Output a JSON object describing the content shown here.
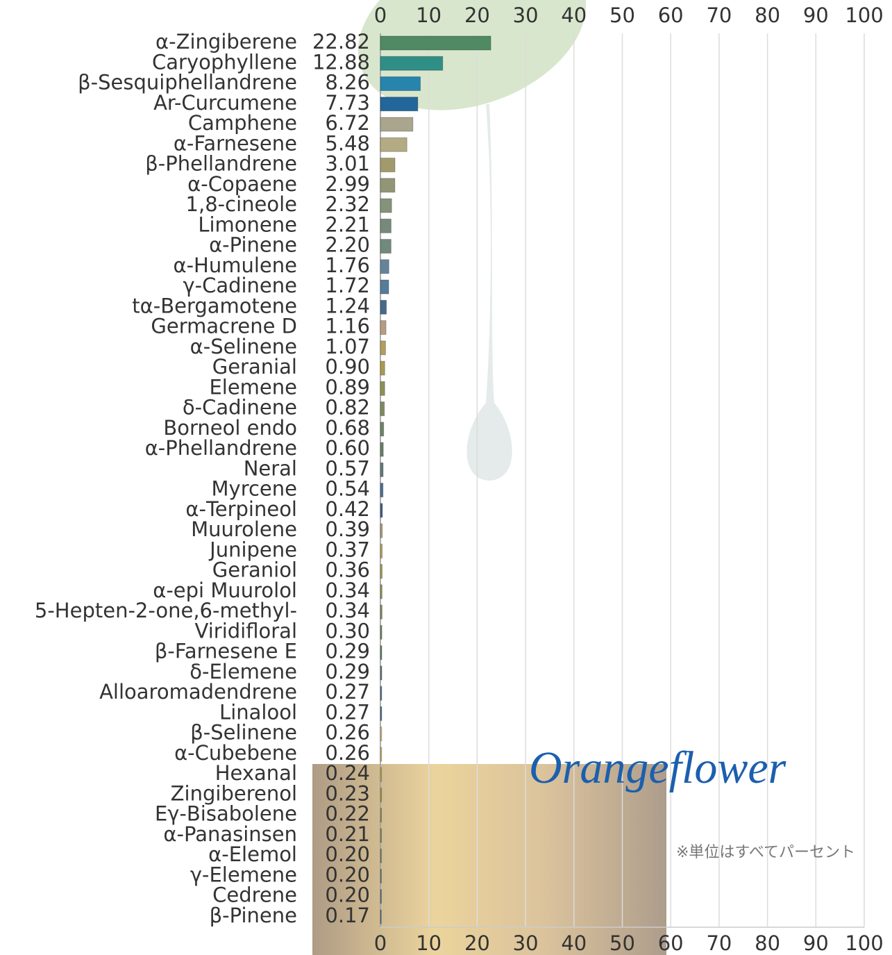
{
  "chart_data": {
    "type": "hbar",
    "categories": [
      "α-Zingiberene",
      "Caryophyllene",
      "β-Sesquiphellandrene",
      "Ar-Curcumene",
      "Camphene",
      "α-Farnesene",
      "β-Phellandrene",
      "α-Copaene",
      "1,8-cineole",
      "Limonene",
      "α-Pinene",
      "α-Humulene",
      "γ-Cadinene",
      "tα-Bergamotene",
      "Germacrene D",
      "α-Selinene",
      "Geranial",
      "Elemene",
      "δ-Cadinene",
      "Borneol endo",
      "α-Phellandrene",
      "Neral",
      "Myrcene",
      "α-Terpineol",
      "Muurolene",
      "Junipene",
      "Geraniol",
      "α-epi Muurolol",
      "5-Hepten-2-one,6-methyl-",
      "Viridifloral",
      "β-Farnesene E",
      "δ-Elemene",
      "Alloaromadendrene",
      "Linalool",
      "β-Selinene",
      "α-Cubebene",
      "Hexanal",
      "Zingiberenol",
      "Eγ-Bisabolene",
      "α-Panasinsen",
      "α-Elemol",
      "γ-Elemene",
      "Cedrene",
      "β-Pinene"
    ],
    "values": [
      22.82,
      12.88,
      8.26,
      7.73,
      6.72,
      5.48,
      3.01,
      2.99,
      2.32,
      2.21,
      2.2,
      1.76,
      1.72,
      1.24,
      1.16,
      1.07,
      0.9,
      0.89,
      0.82,
      0.68,
      0.6,
      0.57,
      0.54,
      0.42,
      0.39,
      0.37,
      0.36,
      0.34,
      0.34,
      0.3,
      0.29,
      0.29,
      0.27,
      0.27,
      0.26,
      0.26,
      0.24,
      0.23,
      0.22,
      0.21,
      0.2,
      0.2,
      0.2,
      0.17
    ],
    "value_labels": [
      "22.82",
      "12.88",
      "8.26",
      "7.73",
      "6.72",
      "5.48",
      "3.01",
      "2.99",
      "2.32",
      "2.21",
      "2.20",
      "1.76",
      "1.72",
      "1.24",
      "1.16",
      "1.07",
      "0.90",
      "0.89",
      "0.82",
      "0.68",
      "0.60",
      "0.57",
      "0.54",
      "0.42",
      "0.39",
      "0.37",
      "0.36",
      "0.34",
      "0.34",
      "0.30",
      "0.29",
      "0.29",
      "0.27",
      "0.27",
      "0.26",
      "0.26",
      "0.24",
      "0.23",
      "0.22",
      "0.21",
      "0.20",
      "0.20",
      "0.20",
      "0.17"
    ],
    "colors": [
      "#4f8a64",
      "#2f8f86",
      "#2784ad",
      "#23669a",
      "#aaa68e",
      "#b2ab83",
      "#a39a6c",
      "#929676",
      "#84937a",
      "#76897a",
      "#728a7e",
      "#65849a",
      "#577c98",
      "#466a88",
      "#b49d82",
      "#b49e5e",
      "#a99a52",
      "#8f8f58",
      "#7f8a62",
      "#6f8466",
      "#677e6c",
      "#607a7e",
      "#4d6e8e",
      "#405e88",
      "#a89878",
      "#b0a060",
      "#a49a52",
      "#909054",
      "#7c8a5a",
      "#6e8462",
      "#628068",
      "#5a7a78",
      "#4e708a",
      "#466a90",
      "#c8b47a",
      "#c8b060",
      "#b8a852",
      "#a09a50",
      "#8a9254",
      "#768a5a",
      "#688462",
      "#5c7e72",
      "#4e7488",
      "#3c6a92"
    ],
    "xlim": [
      0,
      100
    ],
    "xticks": [
      0,
      10,
      20,
      30,
      40,
      50,
      60,
      70,
      80,
      90,
      100
    ],
    "grid": true
  },
  "logo": "Orangeflower",
  "note": "※単位はすべてパーセント"
}
